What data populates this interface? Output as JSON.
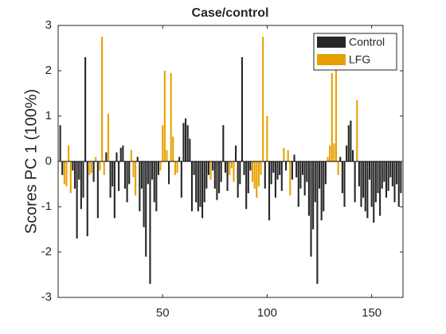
{
  "chart_data": {
    "type": "bar",
    "title": "Case/control",
    "ylabel": "Scores PC 1 (100%)",
    "xlim": [
      0,
      165
    ],
    "xticks": [
      50,
      100,
      150
    ],
    "ylim": [
      -3,
      3
    ],
    "yticks": [
      -3,
      -2,
      -1,
      0,
      1,
      2,
      3
    ],
    "legend": "top-right",
    "grid": false,
    "series": [
      {
        "name": "Control",
        "color": "#262626",
        "values": [
          0.8,
          -0.3,
          null,
          null,
          null,
          null,
          -0.2,
          -0.6,
          -1.7,
          -0.4,
          -1.05,
          -0.8,
          2.3,
          -1.65,
          null,
          null,
          -0.45,
          null,
          -1.25,
          null,
          null,
          null,
          0.2,
          null,
          -0.8,
          -0.55,
          -1.25,
          0.2,
          -0.65,
          0.3,
          0.35,
          -0.6,
          -0.9,
          -0.5,
          null,
          null,
          null,
          0.1,
          -1.1,
          -0.6,
          -1.45,
          -2.1,
          -0.5,
          -2.7,
          -0.4,
          -0.9,
          -1.1,
          -0.3,
          null,
          null,
          null,
          null,
          -0.5,
          null,
          null,
          null,
          null,
          0.1,
          -0.8,
          0.85,
          0.95,
          0.8,
          0.5,
          -1.1,
          -0.3,
          -0.9,
          -1.1,
          -1.0,
          -1.25,
          -0.9,
          -0.6,
          -0.3,
          null,
          -0.2,
          -0.6,
          -0.85,
          -0.7,
          -0.45,
          0.8,
          -0.25,
          -0.65,
          null,
          null,
          null,
          0.35,
          -0.8,
          -0.5,
          2.3,
          -0.3,
          -1.05,
          -0.7,
          -0.2,
          null,
          null,
          null,
          null,
          null,
          null,
          -0.6,
          null,
          -1.3,
          -0.5,
          -0.25,
          -0.8,
          -0.4,
          -0.3,
          -0.65,
          null,
          -0.2,
          null,
          null,
          -0.4,
          0.15,
          -0.35,
          -1.0,
          -0.6,
          -0.3,
          -0.75,
          -0.45,
          -1.2,
          -2.1,
          -1.5,
          -0.9,
          -2.7,
          -0.6,
          -1.3,
          -1.1,
          -0.5,
          null,
          null,
          null,
          null,
          null,
          null,
          0.1,
          -0.7,
          -1.0,
          0.35,
          0.8,
          0.9,
          0.25,
          -0.9,
          null,
          -0.55,
          -1.0,
          -0.8,
          -1.1,
          -1.25,
          -0.4,
          -1.0,
          -1.35,
          -0.9,
          -0.7,
          -1.2,
          -0.6,
          -0.45,
          -0.8,
          -0.65,
          -0.35,
          -0.55,
          -0.9,
          -0.5,
          -1.0,
          -0.7
        ]
      },
      {
        "name": "LFG",
        "color": "#e6a100",
        "values": [
          null,
          null,
          -0.5,
          -0.55,
          0.35,
          -0.7,
          null,
          null,
          null,
          null,
          null,
          null,
          null,
          null,
          -0.3,
          -0.25,
          null,
          0.1,
          null,
          -0.2,
          2.75,
          -0.3,
          null,
          1.05,
          null,
          null,
          null,
          null,
          null,
          null,
          null,
          null,
          null,
          null,
          0.25,
          -0.35,
          -0.75,
          null,
          null,
          null,
          null,
          null,
          null,
          null,
          null,
          null,
          null,
          null,
          -0.2,
          0.8,
          2.0,
          0.25,
          null,
          1.95,
          0.55,
          -0.3,
          -0.25,
          null,
          null,
          null,
          null,
          null,
          null,
          null,
          null,
          null,
          null,
          null,
          null,
          null,
          null,
          null,
          -0.4,
          null,
          null,
          null,
          null,
          null,
          null,
          null,
          null,
          -0.3,
          -0.15,
          -0.45,
          null,
          null,
          null,
          null,
          null,
          null,
          null,
          null,
          -0.45,
          -0.6,
          -0.8,
          -0.55,
          -0.3,
          2.75,
          null,
          1.0,
          null,
          null,
          null,
          null,
          null,
          null,
          null,
          0.3,
          null,
          0.25,
          -0.75,
          null,
          null,
          null,
          null,
          null,
          null,
          null,
          null,
          null,
          null,
          null,
          null,
          null,
          null,
          null,
          null,
          null,
          0.1,
          0.35,
          1.95,
          0.4,
          2.75,
          -0.3,
          null,
          null,
          null,
          null,
          null,
          null,
          null,
          null,
          1.35,
          null,
          null,
          null,
          null,
          null,
          null,
          null,
          null,
          null,
          null,
          null,
          null,
          null,
          null,
          null,
          null,
          null,
          null,
          null,
          null,
          null
        ]
      }
    ]
  }
}
